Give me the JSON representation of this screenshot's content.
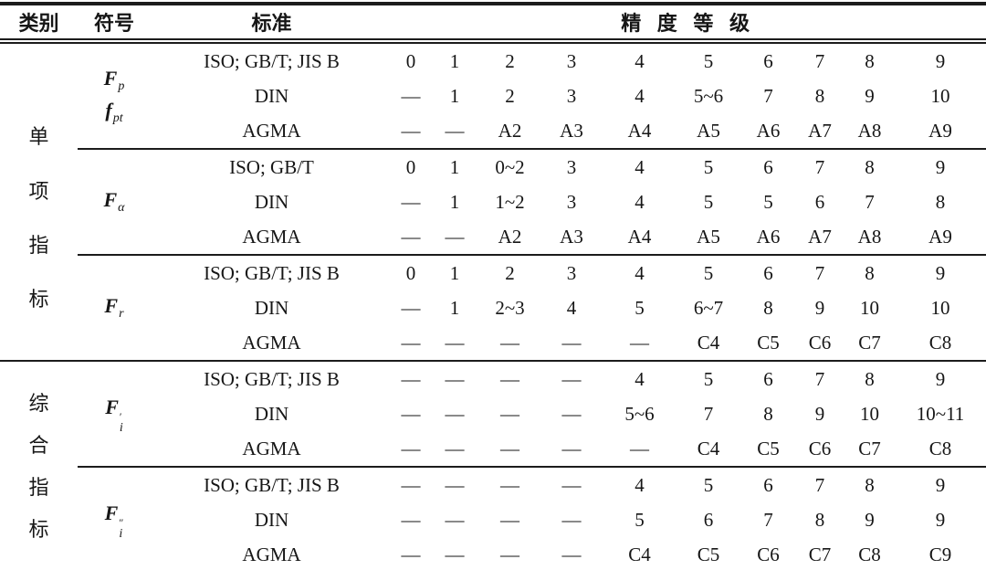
{
  "page": {
    "background": "#ffffff",
    "text_color": "#161616",
    "line_color": "#1c1c1c"
  },
  "header": {
    "category": "类别",
    "symbol": "符号",
    "standard": "标准",
    "grade": "精度等级"
  },
  "groups": [
    {
      "category": {
        "label": "单项指标",
        "rowspan": 9
      },
      "symbols": [
        {
          "base": "F",
          "sub": "p"
        },
        {
          "base": "f",
          "sub": "pt"
        }
      ],
      "rows": [
        {
          "standard": "ISO; GB/T; JIS B",
          "values": [
            "0",
            "1",
            "2",
            "3",
            "4",
            "5",
            "6",
            "7",
            "8",
            "9"
          ]
        },
        {
          "standard": "DIN",
          "values": [
            "—",
            "1",
            "2",
            "3",
            "4",
            "5~6",
            "7",
            "8",
            "9",
            "10"
          ]
        },
        {
          "standard": "AGMA",
          "values": [
            "—",
            "—",
            "A2",
            "A3",
            "A4",
            "A5",
            "A6",
            "A7",
            "A8",
            "A9"
          ]
        }
      ]
    },
    {
      "symbols": [
        {
          "base": "F",
          "sub": "α"
        }
      ],
      "rows": [
        {
          "standard": "ISO; GB/T",
          "values": [
            "0",
            "1",
            "0~2",
            "3",
            "4",
            "5",
            "6",
            "7",
            "8",
            "9"
          ]
        },
        {
          "standard": "DIN",
          "values": [
            "—",
            "1",
            "1~2",
            "3",
            "4",
            "5",
            "5",
            "6",
            "7",
            "8"
          ]
        },
        {
          "standard": "AGMA",
          "values": [
            "—",
            "—",
            "A2",
            "A3",
            "A4",
            "A5",
            "A6",
            "A7",
            "A8",
            "A9"
          ]
        }
      ]
    },
    {
      "symbols": [
        {
          "base": "F",
          "sub": "r"
        }
      ],
      "rows": [
        {
          "standard": "ISO; GB/T; JIS B",
          "values": [
            "0",
            "1",
            "2",
            "3",
            "4",
            "5",
            "6",
            "7",
            "8",
            "9"
          ]
        },
        {
          "standard": "DIN",
          "values": [
            "—",
            "1",
            "2~3",
            "4",
            "5",
            "6~7",
            "8",
            "9",
            "10",
            "10"
          ]
        },
        {
          "standard": "AGMA",
          "values": [
            "—",
            "—",
            "—",
            "—",
            "—",
            "C4",
            "C5",
            "C6",
            "C7",
            "C8"
          ]
        }
      ]
    },
    {
      "category": {
        "label": "综合指标",
        "rowspan": 6
      },
      "symbols": [
        {
          "base": "F",
          "sub": "i",
          "sup": "′"
        }
      ],
      "rows": [
        {
          "standard": "ISO; GB/T; JIS B",
          "values": [
            "—",
            "—",
            "—",
            "—",
            "4",
            "5",
            "6",
            "7",
            "8",
            "9"
          ]
        },
        {
          "standard": "DIN",
          "values": [
            "—",
            "—",
            "—",
            "—",
            "5~6",
            "7",
            "8",
            "9",
            "10",
            "10~11"
          ]
        },
        {
          "standard": "AGMA",
          "values": [
            "—",
            "—",
            "—",
            "—",
            "—",
            "C4",
            "C5",
            "C6",
            "C7",
            "C8"
          ]
        }
      ]
    },
    {
      "symbols": [
        {
          "base": "F",
          "sub": "i",
          "sup": "″"
        }
      ],
      "rows": [
        {
          "standard": "ISO; GB/T; JIS B",
          "values": [
            "—",
            "—",
            "—",
            "—",
            "4",
            "5",
            "6",
            "7",
            "8",
            "9"
          ]
        },
        {
          "standard": "DIN",
          "values": [
            "—",
            "—",
            "—",
            "—",
            "5",
            "6",
            "7",
            "8",
            "9",
            "9"
          ]
        },
        {
          "standard": "AGMA",
          "values": [
            "—",
            "—",
            "—",
            "—",
            "C4",
            "C5",
            "C6",
            "C7",
            "C8",
            "C9"
          ]
        }
      ]
    }
  ]
}
